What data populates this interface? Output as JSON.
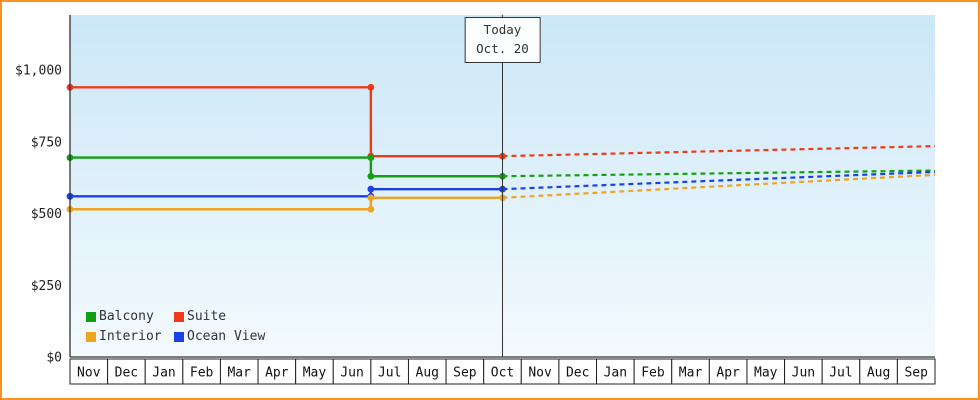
{
  "chart_data": {
    "type": "line",
    "description": "Cruise cabin price history (solid step lines) and forecast (dashed lines) by cabin category",
    "x_tick_labels": [
      "Nov",
      "Dec",
      "Jan",
      "Feb",
      "Mar",
      "Apr",
      "May",
      "Jun",
      "Jul",
      "Aug",
      "Sep",
      "Oct",
      "Nov",
      "Dec",
      "Jan",
      "Feb",
      "Mar",
      "Apr",
      "May",
      "Jun",
      "Jul",
      "Aug",
      "Sep"
    ],
    "y_ticks": [
      0,
      250,
      500,
      750,
      1000
    ],
    "y_tick_labels": [
      "$0",
      "$250",
      "$500",
      "$750",
      "$1,000"
    ],
    "ylim": [
      0,
      1192
    ],
    "grid": false,
    "legend_position": "bottom-left-inside",
    "today": {
      "x": 11.5,
      "line1": "Today",
      "line2": "Oct. 20"
    },
    "series": [
      {
        "name": "Suite",
        "color": "#ee3a1b",
        "history": [
          [
            0,
            940
          ],
          [
            8,
            940
          ],
          [
            8,
            700
          ],
          [
            11.5,
            700
          ]
        ],
        "forecast": [
          [
            11.5,
            700
          ],
          [
            23,
            735
          ]
        ]
      },
      {
        "name": "Balcony",
        "color": "#12a012",
        "history": [
          [
            0,
            695
          ],
          [
            8,
            695
          ],
          [
            8,
            630
          ],
          [
            11.5,
            630
          ]
        ],
        "forecast": [
          [
            11.5,
            630
          ],
          [
            23,
            650
          ]
        ]
      },
      {
        "name": "Ocean View",
        "color": "#1a40e8",
        "history": [
          [
            0,
            560
          ],
          [
            8,
            560
          ],
          [
            8,
            585
          ],
          [
            11.5,
            585
          ]
        ],
        "forecast": [
          [
            11.5,
            585
          ],
          [
            23,
            645
          ]
        ]
      },
      {
        "name": "Interior",
        "color": "#efa41f",
        "history": [
          [
            0,
            515
          ],
          [
            8,
            515
          ],
          [
            8,
            555
          ],
          [
            11.5,
            555
          ]
        ],
        "forecast": [
          [
            11.5,
            555
          ],
          [
            23,
            635
          ]
        ]
      }
    ]
  },
  "legend": {
    "items": [
      {
        "label": "Balcony",
        "color": "#12a012"
      },
      {
        "label": "Suite",
        "color": "#ee3a1b"
      },
      {
        "label": "Interior",
        "color": "#efa41f"
      },
      {
        "label": "Ocean View",
        "color": "#1a40e8"
      }
    ]
  },
  "colors": {
    "window_border": "#ff9020",
    "plot_gradient_top": "#cbe7f7",
    "plot_gradient_bottom": "#f3fafe",
    "axis": "#333333",
    "tick_cell_bg": "#ffffff"
  }
}
